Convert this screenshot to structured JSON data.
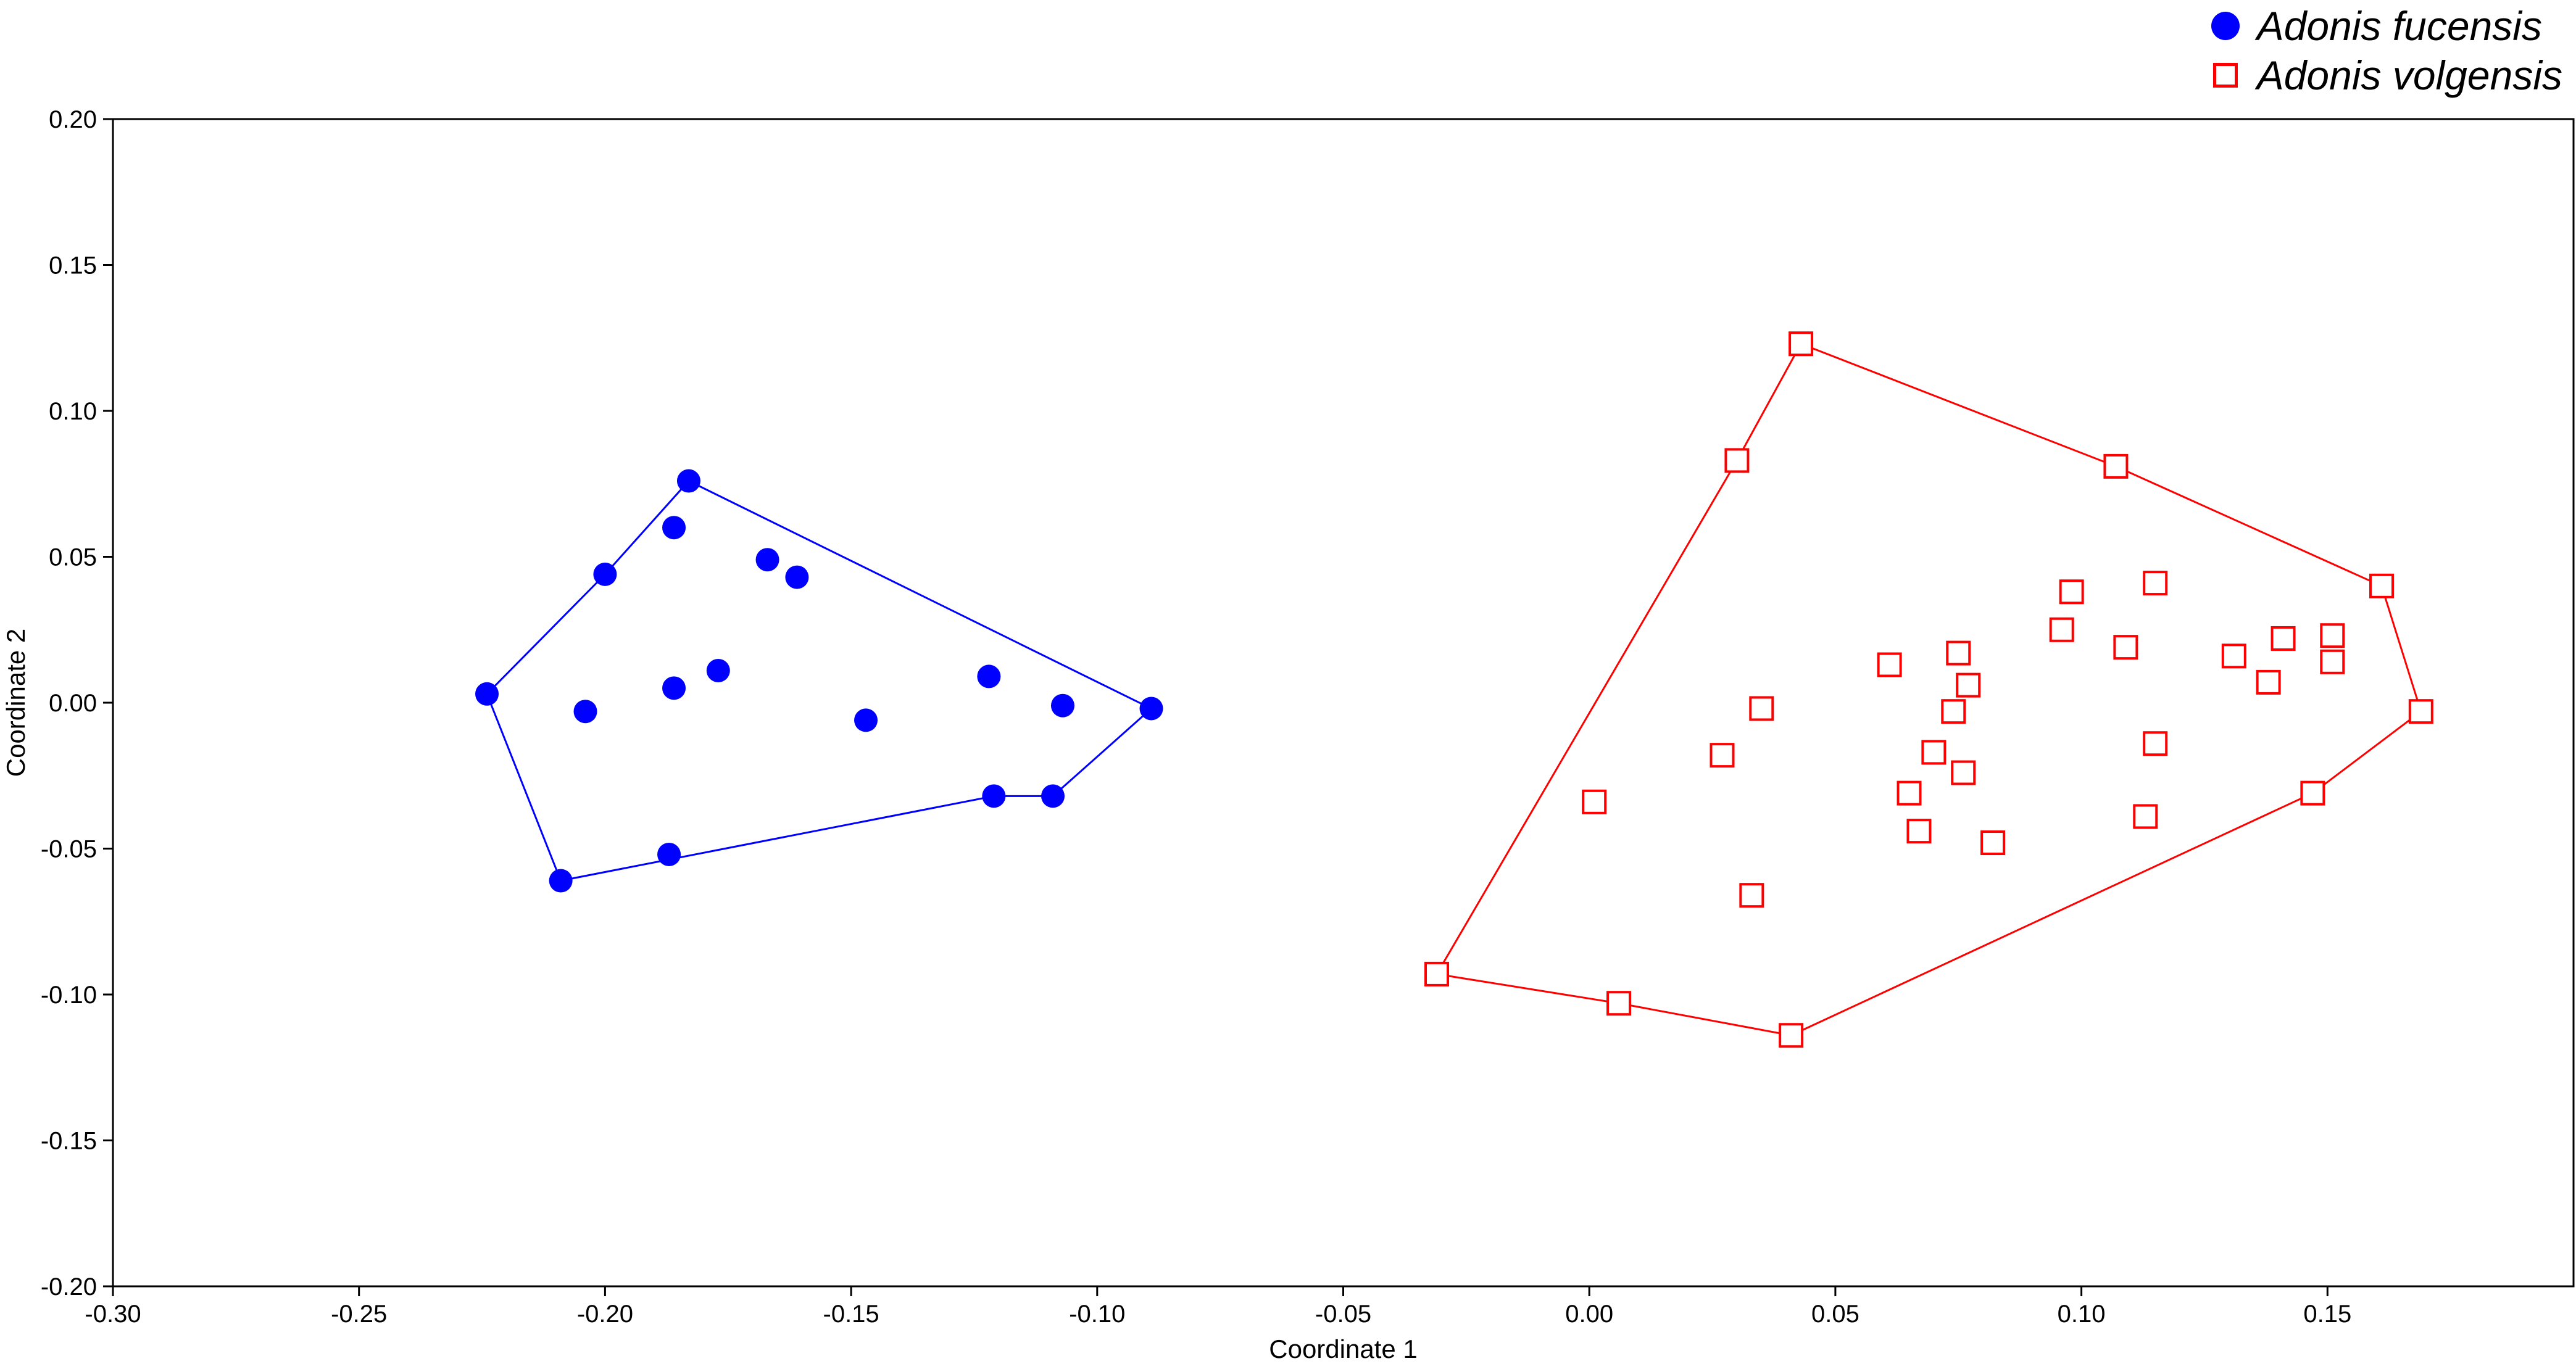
{
  "colors": {
    "fucensis": "#0000ff",
    "volgensis": "#ff0000",
    "axis": "#000000"
  },
  "chart_data": {
    "type": "scatter",
    "xlabel": "Coordinate 1",
    "ylabel": "Coordinate 2",
    "xlim": [
      -0.3,
      0.2
    ],
    "ylim": [
      -0.2,
      0.2
    ],
    "xticks": [
      "-0.30",
      "-0.25",
      "-0.20",
      "-0.15",
      "-0.10",
      "-0.05",
      "0.00",
      "0.05",
      "0.10",
      "0.15"
    ],
    "xtick_values": [
      -0.3,
      -0.25,
      -0.2,
      -0.15,
      -0.1,
      -0.05,
      0.0,
      0.05,
      0.1,
      0.15
    ],
    "yticks": [
      "0.20",
      "0.15",
      "0.10",
      "0.05",
      "0.00",
      "-0.05",
      "-0.10",
      "-0.15",
      "-0.20"
    ],
    "ytick_values": [
      0.2,
      0.15,
      0.1,
      0.05,
      0.0,
      -0.05,
      -0.1,
      -0.15,
      -0.2
    ],
    "grid": false,
    "legend": "top-right",
    "series": [
      {
        "name": "Adonis fucensis",
        "marker": "filled-circle",
        "color": "#0000ff",
        "points": [
          [
            -0.183,
            0.076
          ],
          [
            -0.186,
            0.06
          ],
          [
            -0.2,
            0.044
          ],
          [
            -0.167,
            0.049
          ],
          [
            -0.161,
            0.043
          ],
          [
            -0.224,
            0.003
          ],
          [
            -0.204,
            -0.003
          ],
          [
            -0.186,
            0.005
          ],
          [
            -0.177,
            0.011
          ],
          [
            -0.147,
            -0.006
          ],
          [
            -0.122,
            0.009
          ],
          [
            -0.107,
            -0.001
          ],
          [
            -0.089,
            -0.002
          ],
          [
            -0.121,
            -0.032
          ],
          [
            -0.109,
            -0.032
          ],
          [
            -0.187,
            -0.052
          ],
          [
            -0.209,
            -0.061
          ]
        ],
        "hull": [
          [
            -0.183,
            0.076
          ],
          [
            -0.089,
            -0.002
          ],
          [
            -0.109,
            -0.032
          ],
          [
            -0.121,
            -0.032
          ],
          [
            -0.209,
            -0.061
          ],
          [
            -0.224,
            0.003
          ],
          [
            -0.2,
            0.044
          ]
        ]
      },
      {
        "name": "Adonis volgensis",
        "marker": "open-square",
        "color": "#ff0000",
        "points": [
          [
            0.043,
            0.123
          ],
          [
            0.03,
            0.083
          ],
          [
            0.107,
            0.081
          ],
          [
            0.161,
            0.04
          ],
          [
            0.098,
            0.038
          ],
          [
            0.115,
            0.041
          ],
          [
            0.096,
            0.025
          ],
          [
            0.109,
            0.019
          ],
          [
            0.141,
            0.022
          ],
          [
            0.151,
            0.023
          ],
          [
            0.075,
            0.017
          ],
          [
            0.061,
            0.013
          ],
          [
            0.131,
            0.016
          ],
          [
            0.151,
            0.014
          ],
          [
            0.138,
            0.007
          ],
          [
            0.077,
            0.006
          ],
          [
            0.035,
            -0.002
          ],
          [
            0.074,
            -0.003
          ],
          [
            0.169,
            -0.003
          ],
          [
            0.027,
            -0.018
          ],
          [
            0.07,
            -0.017
          ],
          [
            0.076,
            -0.024
          ],
          [
            0.115,
            -0.014
          ],
          [
            0.001,
            -0.034
          ],
          [
            0.065,
            -0.031
          ],
          [
            0.147,
            -0.031
          ],
          [
            0.113,
            -0.039
          ],
          [
            0.067,
            -0.044
          ],
          [
            0.082,
            -0.048
          ],
          [
            0.033,
            -0.066
          ],
          [
            -0.031,
            -0.093
          ],
          [
            0.006,
            -0.103
          ],
          [
            0.041,
            -0.114
          ]
        ],
        "hull": [
          [
            0.043,
            0.123
          ],
          [
            0.107,
            0.081
          ],
          [
            0.161,
            0.04
          ],
          [
            0.169,
            -0.003
          ],
          [
            0.147,
            -0.031
          ],
          [
            0.041,
            -0.114
          ],
          [
            0.006,
            -0.103
          ],
          [
            -0.031,
            -0.093
          ],
          [
            0.03,
            0.083
          ]
        ]
      }
    ]
  }
}
